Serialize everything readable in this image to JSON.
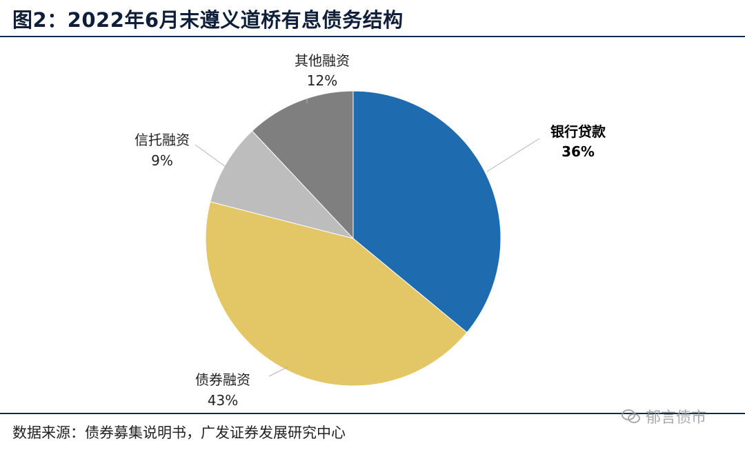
{
  "title": "图2：2022年6月末遵义道桥有息债务结构",
  "source": "数据来源：债券募集说明书，广发证券发展研究中心",
  "watermark": "郁言债市",
  "chart_data": {
    "type": "pie",
    "title": "图2：2022年6月末遵义道桥有息债务结构",
    "slices": [
      {
        "name": "银行贷款",
        "value": 36,
        "label": "36%",
        "color": "#1f6bb0",
        "bold": true
      },
      {
        "name": "债券融资",
        "value": 43,
        "label": "43%",
        "color": "#e3c766",
        "bold": false
      },
      {
        "name": "信托融资",
        "value": 9,
        "label": "9%",
        "color": "#bdbdbd",
        "bold": false
      },
      {
        "name": "其他融资",
        "value": 12,
        "label": "12%",
        "color": "#7f7f7f",
        "bold": false
      }
    ]
  }
}
